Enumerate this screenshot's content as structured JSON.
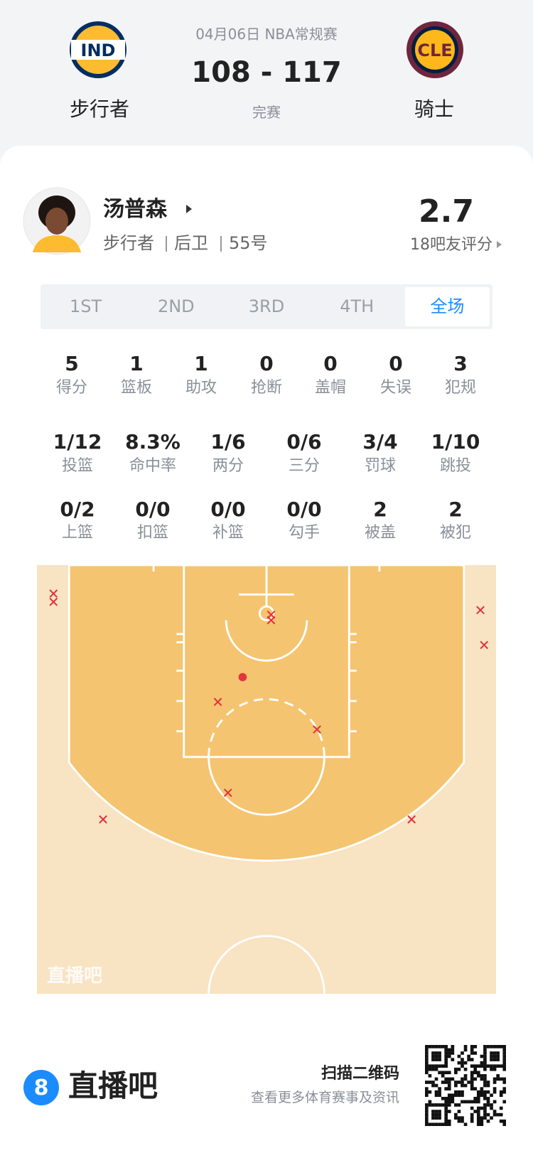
{
  "header": {
    "date": "04月06日 NBA常规赛",
    "score": "108 - 117",
    "status": "完赛",
    "home": {
      "logo": "IND",
      "name": "步行者"
    },
    "away": {
      "logo": "CLE",
      "name": "骑士"
    }
  },
  "player": {
    "name": "汤普森",
    "team": "步行者",
    "position": "后卫",
    "number": "55号",
    "rating": "2.7",
    "rating_label": "18吧友评分"
  },
  "tabs": [
    "1ST",
    "2ND",
    "3RD",
    "4TH",
    "全场"
  ],
  "active_tab": 4,
  "stats": [
    [
      {
        "value": "5",
        "label": "得分"
      },
      {
        "value": "1",
        "label": "篮板"
      },
      {
        "value": "1",
        "label": "助攻"
      },
      {
        "value": "0",
        "label": "抢断"
      },
      {
        "value": "0",
        "label": "盖帽"
      },
      {
        "value": "0",
        "label": "失误"
      },
      {
        "value": "3",
        "label": "犯规"
      }
    ],
    [
      {
        "value": "1/12",
        "label": "投篮"
      },
      {
        "value": "8.3%",
        "label": "命中率"
      },
      {
        "value": "1/6",
        "label": "两分"
      },
      {
        "value": "0/6",
        "label": "三分"
      },
      {
        "value": "3/4",
        "label": "罚球"
      },
      {
        "value": "1/10",
        "label": "跳投"
      }
    ],
    [
      {
        "value": "0/2",
        "label": "上篮"
      },
      {
        "value": "0/0",
        "label": "扣篮"
      },
      {
        "value": "0/0",
        "label": "补篮"
      },
      {
        "value": "0/0",
        "label": "勾手"
      },
      {
        "value": "2",
        "label": "被盖"
      },
      {
        "value": "2",
        "label": "被犯"
      }
    ]
  ],
  "shot_chart": {
    "watermark": "直播吧",
    "shots": [
      {
        "x": 1.8,
        "y": 3.1,
        "result": "miss"
      },
      {
        "x": 1.8,
        "y": 4.0,
        "result": "miss"
      },
      {
        "x": 25.5,
        "y": 5.4,
        "result": "miss"
      },
      {
        "x": 25.5,
        "y": 6.0,
        "result": "miss"
      },
      {
        "x": 48.3,
        "y": 4.9,
        "result": "miss"
      },
      {
        "x": 48.7,
        "y": 8.7,
        "result": "miss"
      },
      {
        "x": 22.4,
        "y": 12.2,
        "result": "made"
      },
      {
        "x": 19.7,
        "y": 14.9,
        "result": "miss"
      },
      {
        "x": 30.5,
        "y": 17.9,
        "result": "miss"
      },
      {
        "x": 20.8,
        "y": 24.8,
        "result": "miss"
      },
      {
        "x": 7.2,
        "y": 27.7,
        "result": "miss"
      },
      {
        "x": 40.8,
        "y": 27.7,
        "result": "miss"
      }
    ]
  },
  "footer": {
    "brand": "直播吧",
    "logo": "8",
    "scan": "扫描二维码",
    "scan_sub": "查看更多体育赛事及资讯"
  }
}
